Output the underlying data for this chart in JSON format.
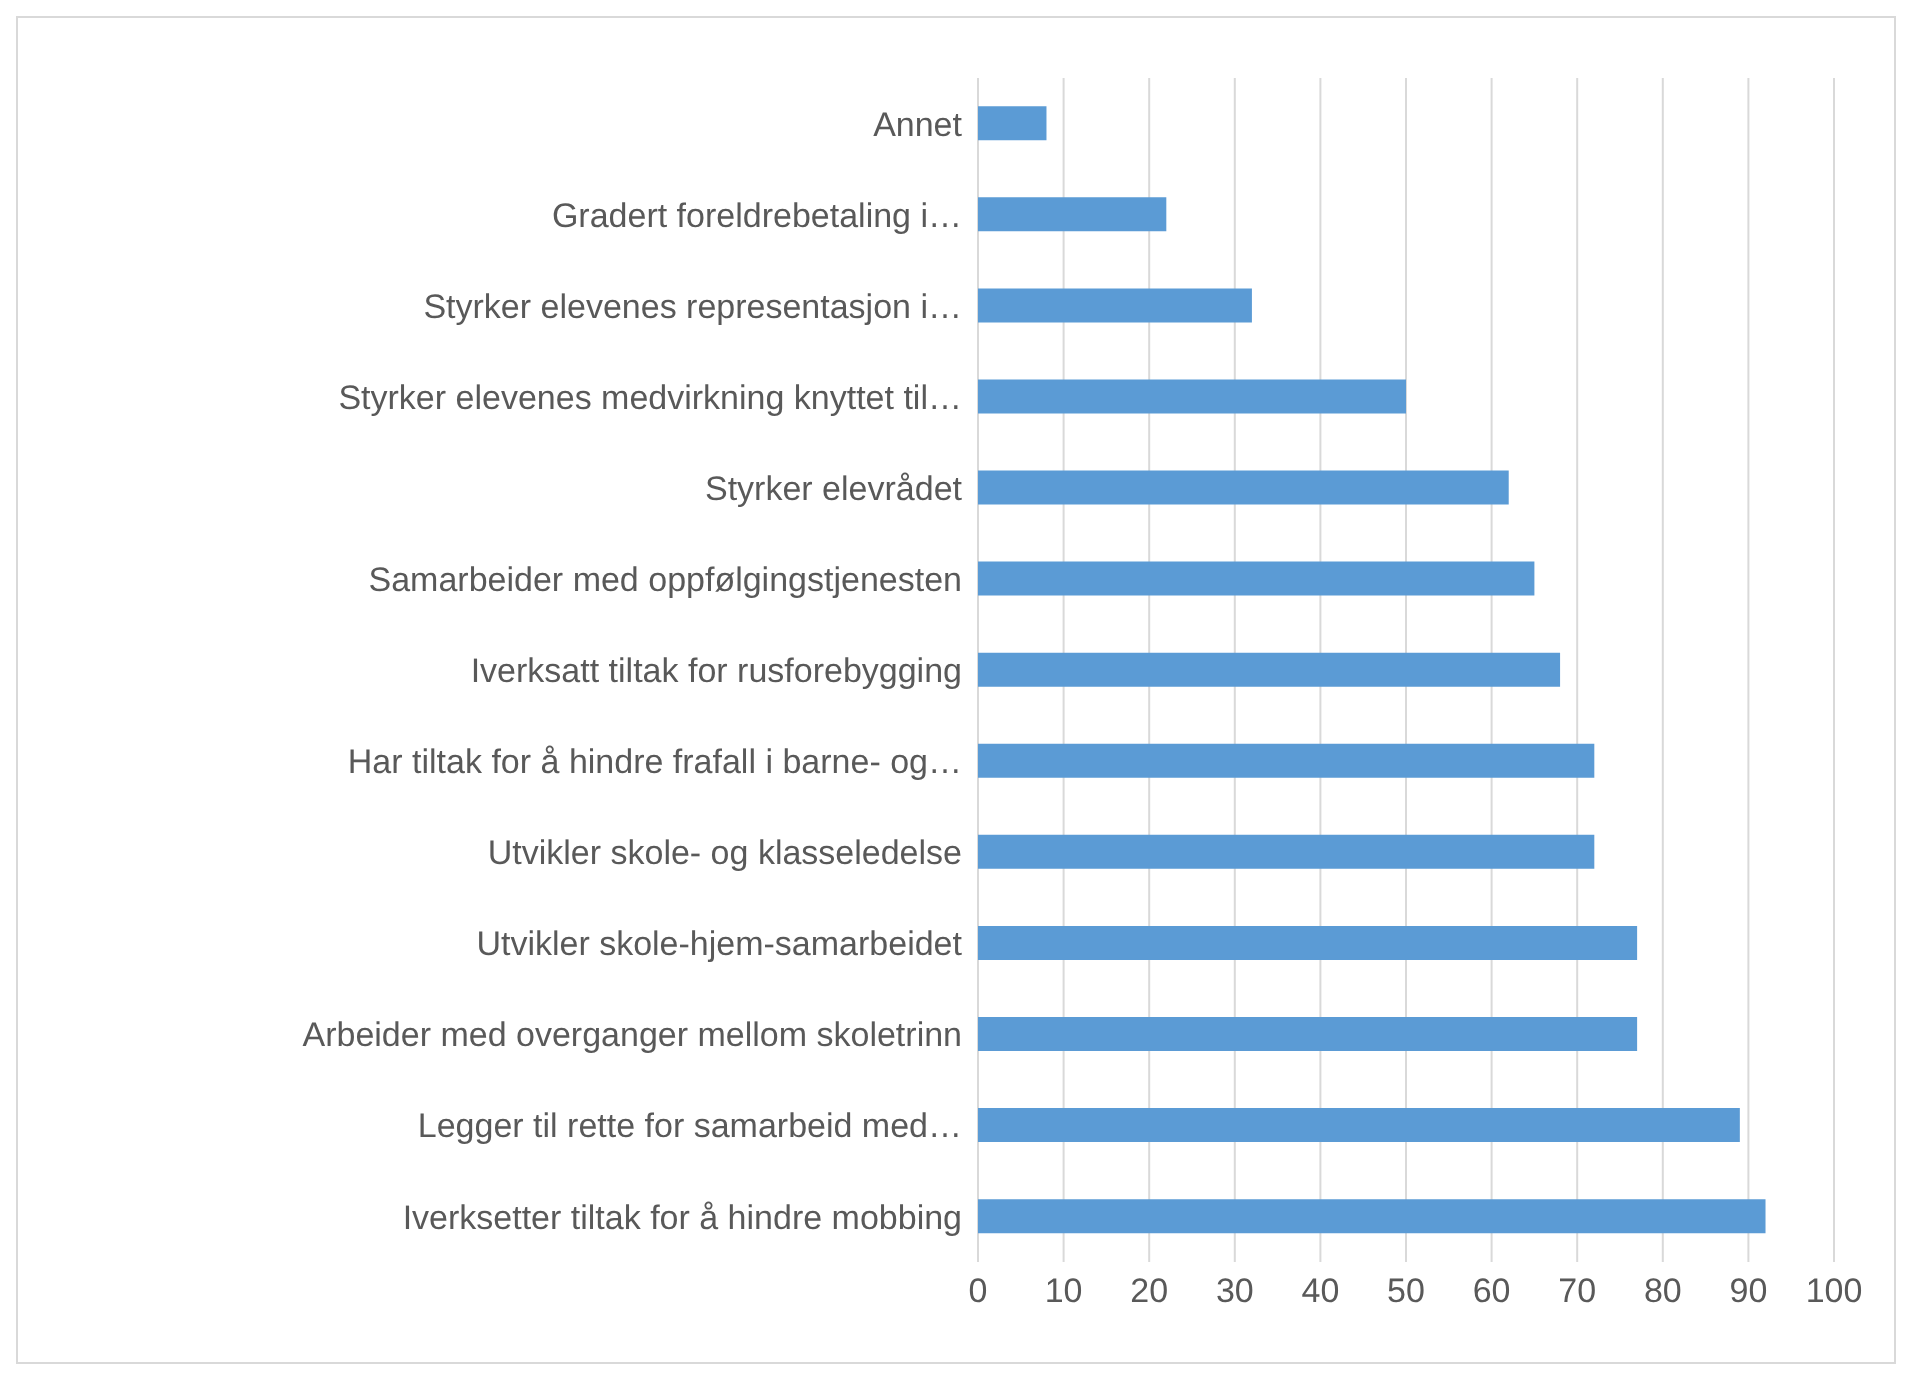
{
  "chart_data": {
    "type": "bar",
    "orientation": "horizontal",
    "categories": [
      "Annet",
      "Gradert foreldrebetaling i…",
      "Styrker elevenes representasjon i…",
      "Styrker elevenes medvirkning knyttet til…",
      "Styrker elevrådet ",
      "Samarbeider med oppfølgingstjenesten ",
      "Iverksatt tiltak for rusforebygging ",
      "Har tiltak for å hindre frafall i barne- og…",
      "Utvikler skole- og klasseledelse ",
      "Utvikler skole-hjem-samarbeidet ",
      "Arbeider med overganger mellom skoletrinn ",
      "Legger til rette for samarbeid med…",
      "Iverksetter tiltak for å hindre mobbing "
    ],
    "values": [
      8,
      22,
      32,
      50,
      62,
      65,
      68,
      72,
      72,
      77,
      77,
      89,
      92
    ],
    "color": "#5b9bd5",
    "xlim": [
      0,
      100
    ],
    "xticks": [
      0,
      10,
      20,
      30,
      40,
      50,
      60,
      70,
      80,
      90,
      100
    ],
    "grid": "x"
  }
}
